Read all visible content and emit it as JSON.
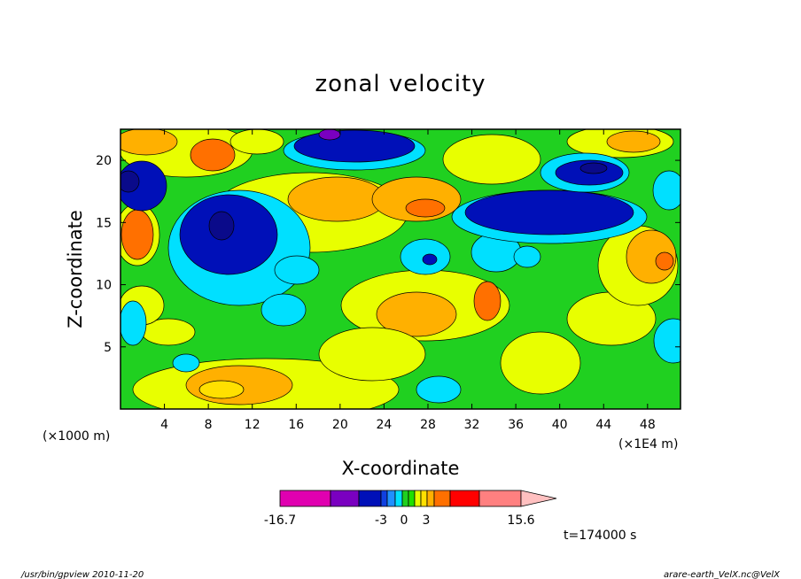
{
  "chart_data": {
    "type": "heatmap",
    "title": "zonal velocity",
    "xlabel": "X-coordinate",
    "ylabel": "Z-coordinate",
    "x_unit": "(×1E4 m)",
    "y_unit": "(×1000 m)",
    "xlim": [
      0,
      51
    ],
    "ylim": [
      0,
      22.5
    ],
    "x_ticks": [
      4,
      8,
      12,
      16,
      20,
      24,
      28,
      32,
      36,
      40,
      44,
      48
    ],
    "y_ticks": [
      5,
      10,
      15,
      20
    ],
    "colorbar": {
      "labels": [
        "-16.7",
        "-3",
        "0",
        "3",
        "15.6"
      ],
      "levels": [
        -16.7,
        -12,
        -8,
        -5,
        -3,
        -2,
        -1,
        0,
        1,
        2,
        3,
        5,
        8,
        12,
        15.6
      ],
      "colors": [
        "#e000b0",
        "#7a00c0",
        "#0010b8",
        "#1040e0",
        "#2090ff",
        "#00e0ff",
        "#20d020",
        "#20e000",
        "#e8ff00",
        "#ffe000",
        "#ffb000",
        "#ff7000",
        "#ff0000",
        "#ff8080",
        "#ffc0c0"
      ]
    },
    "annotation": "t=174000 s"
  },
  "footer": {
    "left": "/usr/bin/gpview  2010-11-20",
    "right": "arare-earth_VelX.nc@VelX"
  }
}
